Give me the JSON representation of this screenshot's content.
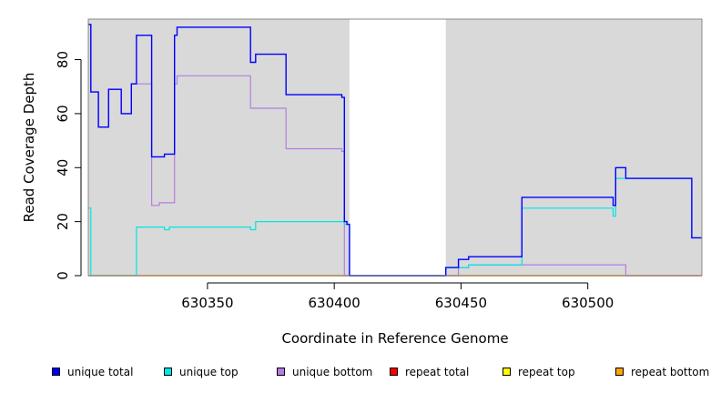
{
  "chart_data": {
    "type": "line",
    "title": "",
    "xlabel": "Coordinate in Reference Genome",
    "ylabel": "Read Coverage Depth",
    "xlim": [
      630303,
      630545
    ],
    "ylim": [
      0,
      95
    ],
    "x_ticks": [
      "630350",
      "630400",
      "630450",
      "630500"
    ],
    "y_ticks": [
      "0",
      "20",
      "40",
      "60",
      "80"
    ],
    "gap_region": [
      630406,
      630444
    ],
    "legend_position": "bottom",
    "series": [
      {
        "name": "unique total",
        "color": "#0000ff",
        "points": [
          [
            630303,
            93
          ],
          [
            630304,
            93
          ],
          [
            630304,
            68
          ],
          [
            630307,
            68
          ],
          [
            630307,
            55
          ],
          [
            630311,
            55
          ],
          [
            630311,
            69
          ],
          [
            630316,
            69
          ],
          [
            630316,
            60
          ],
          [
            630320,
            60
          ],
          [
            630320,
            71
          ],
          [
            630322,
            71
          ],
          [
            630322,
            89
          ],
          [
            630328,
            89
          ],
          [
            630328,
            44
          ],
          [
            630333,
            44
          ],
          [
            630333,
            45
          ],
          [
            630337,
            45
          ],
          [
            630337,
            89
          ],
          [
            630338,
            89
          ],
          [
            630338,
            92
          ],
          [
            630367,
            92
          ],
          [
            630367,
            79
          ],
          [
            630369,
            79
          ],
          [
            630369,
            82
          ],
          [
            630381,
            82
          ],
          [
            630381,
            67
          ],
          [
            630403,
            67
          ],
          [
            630403,
            66
          ],
          [
            630404,
            66
          ],
          [
            630404,
            20
          ],
          [
            630405,
            20
          ],
          [
            630405,
            19
          ],
          [
            630406,
            19
          ],
          [
            630406,
            0
          ],
          [
            630444,
            0
          ],
          [
            630444,
            3
          ],
          [
            630449,
            3
          ],
          [
            630449,
            6
          ],
          [
            630453,
            6
          ],
          [
            630453,
            7
          ],
          [
            630474,
            7
          ],
          [
            630474,
            29
          ],
          [
            630510,
            29
          ],
          [
            630510,
            26
          ],
          [
            630511,
            26
          ],
          [
            630511,
            40
          ],
          [
            630515,
            40
          ],
          [
            630515,
            36
          ],
          [
            630541,
            36
          ],
          [
            630541,
            14
          ],
          [
            630545,
            14
          ]
        ]
      },
      {
        "name": "unique top",
        "color": "#00e5e5",
        "points": [
          [
            630303,
            25
          ],
          [
            630304,
            25
          ],
          [
            630304,
            0
          ],
          [
            630322,
            0
          ],
          [
            630322,
            18
          ],
          [
            630333,
            18
          ],
          [
            630333,
            17
          ],
          [
            630335,
            17
          ],
          [
            630335,
            18
          ],
          [
            630367,
            18
          ],
          [
            630367,
            17
          ],
          [
            630369,
            17
          ],
          [
            630369,
            20
          ],
          [
            630404,
            20
          ],
          [
            630404,
            19
          ],
          [
            630406,
            19
          ],
          [
            630406,
            0
          ],
          [
            630444,
            0
          ],
          [
            630444,
            3
          ],
          [
            630449,
            3
          ],
          [
            630449,
            3
          ],
          [
            630453,
            3
          ],
          [
            630453,
            4
          ],
          [
            630474,
            4
          ],
          [
            630474,
            25
          ],
          [
            630510,
            25
          ],
          [
            630510,
            22
          ],
          [
            630511,
            22
          ],
          [
            630511,
            36
          ],
          [
            630515,
            36
          ],
          [
            630515,
            36
          ],
          [
            630541,
            36
          ],
          [
            630541,
            14
          ],
          [
            630545,
            14
          ]
        ]
      },
      {
        "name": "unique bottom",
        "color": "#b27fe0",
        "points": [
          [
            630303,
            93
          ],
          [
            630304,
            93
          ],
          [
            630304,
            68
          ],
          [
            630307,
            68
          ],
          [
            630307,
            55
          ],
          [
            630311,
            55
          ],
          [
            630311,
            69
          ],
          [
            630316,
            69
          ],
          [
            630316,
            60
          ],
          [
            630320,
            60
          ],
          [
            630320,
            71
          ],
          [
            630328,
            71
          ],
          [
            630328,
            26
          ],
          [
            630331,
            26
          ],
          [
            630331,
            27
          ],
          [
            630337,
            27
          ],
          [
            630337,
            71
          ],
          [
            630338,
            71
          ],
          [
            630338,
            74
          ],
          [
            630367,
            74
          ],
          [
            630367,
            62
          ],
          [
            630381,
            62
          ],
          [
            630381,
            47
          ],
          [
            630403,
            47
          ],
          [
            630403,
            46
          ],
          [
            630404,
            46
          ],
          [
            630404,
            0
          ],
          [
            630449,
            0
          ],
          [
            630449,
            3
          ],
          [
            630453,
            3
          ],
          [
            630453,
            4
          ],
          [
            630515,
            4
          ],
          [
            630515,
            0
          ],
          [
            630545,
            0
          ]
        ]
      },
      {
        "name": "repeat total",
        "color": "#ff0000",
        "points": [
          [
            630303,
            0
          ],
          [
            630545,
            0
          ]
        ]
      },
      {
        "name": "repeat top",
        "color": "#ffff00",
        "points": [
          [
            630303,
            0
          ],
          [
            630545,
            0
          ]
        ]
      },
      {
        "name": "repeat bottom",
        "color": "#ffa500",
        "points": [
          [
            630303,
            0
          ],
          [
            630545,
            0
          ]
        ]
      }
    ]
  }
}
